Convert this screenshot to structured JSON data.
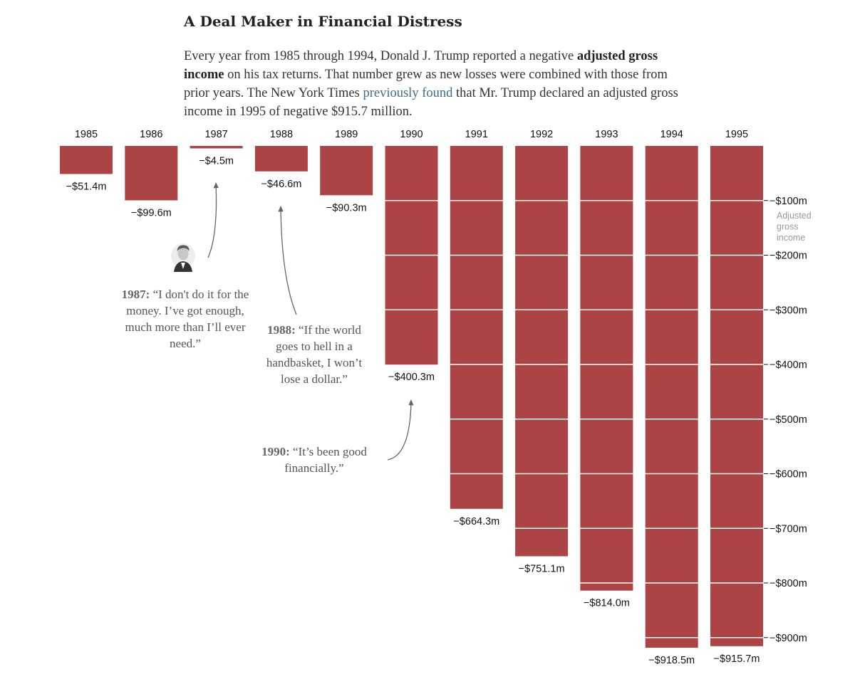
{
  "title": "A Deal Maker in Financial Distress",
  "intro": {
    "part1": "Every year from 1985 through 1994, Donald J. Trump reported a negative ",
    "bold": "adjusted gross income",
    "part2": " on his tax returns. That number grew as new losses were combined with those from prior years. The New York Times ",
    "link": "previously found",
    "part3": " that Mr. Trump declared an adjusted gross income in 1995 of negative $915.7 million."
  },
  "chart_data": {
    "type": "bar",
    "title": "A Deal Maker in Financial Distress",
    "categories": [
      "1985",
      "1986",
      "1987",
      "1988",
      "1989",
      "1990",
      "1991",
      "1992",
      "1993",
      "1994",
      "1995"
    ],
    "values": [
      -51.4,
      -99.6,
      -4.5,
      -46.6,
      -90.3,
      -400.3,
      -664.3,
      -751.1,
      -814.0,
      -918.5,
      -915.7
    ],
    "value_labels": [
      "−$51.4m",
      "−$99.6m",
      "−$4.5m",
      "−$46.6m",
      "−$90.3m",
      "−$400.3m",
      "−$664.3m",
      "−$751.1m",
      "−$814.0m",
      "−$918.5m",
      "−$915.7m"
    ],
    "unit": "millions of dollars",
    "ylabel": "Adjusted gross income",
    "ylabel_lines": [
      "Adjusted",
      "gross",
      "income"
    ],
    "y_ticks": [
      -100,
      -200,
      -300,
      -400,
      -500,
      -600,
      -700,
      -800,
      -900
    ],
    "y_tick_labels": [
      "−$100m",
      "−$200m",
      "−$300m",
      "−$400m",
      "−$500m",
      "−$600m",
      "−$700m",
      "−$800m",
      "−$900m"
    ],
    "ylim": [
      -950,
      0
    ],
    "bar_color": "#ac4344",
    "gridline_color": "#ffffff"
  },
  "annotations": [
    {
      "year": "1987:",
      "quote": "“I don't do it for the money. I’ve got enough, much more than I’ll ever need.”",
      "points_to": "1987"
    },
    {
      "year": "1988:",
      "quote": "“If the world goes to hell in a handbasket, I won’t lose a dollar.”",
      "points_to": "1988"
    },
    {
      "year": "1990:",
      "quote": "“It’s been good financially.”",
      "points_to": "1990"
    }
  ]
}
